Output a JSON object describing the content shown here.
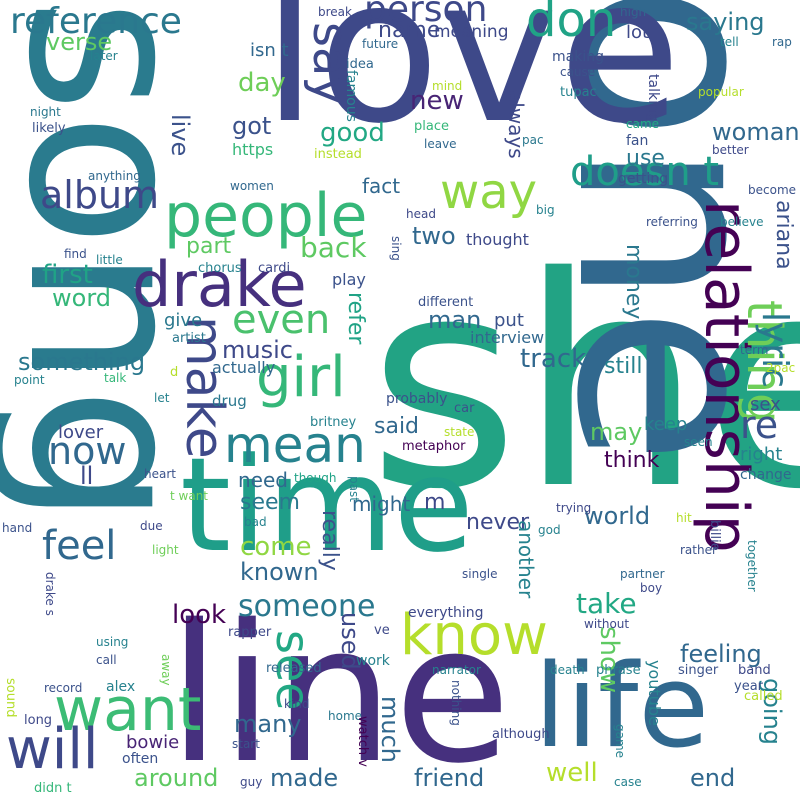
{
  "words": [
    {
      "text": "she",
      "color": "#22a384"
    },
    {
      "text": "song",
      "color": "#2a7b8e"
    },
    {
      "text": "one",
      "color": "#31688e"
    },
    {
      "text": "love",
      "color": "#3e4989"
    },
    {
      "text": "line",
      "color": "#46307e"
    },
    {
      "text": "time",
      "color": "#1f9e89"
    },
    {
      "text": "life",
      "color": "#31688e"
    },
    {
      "text": "relationship",
      "color": "#440154"
    },
    {
      "text": "people",
      "color": "#35b779"
    },
    {
      "text": "drake",
      "color": "#46307e"
    },
    {
      "text": "know",
      "color": "#b5de2b"
    },
    {
      "text": "want",
      "color": "#3cbc75"
    },
    {
      "text": "make",
      "color": "#3e4989"
    },
    {
      "text": "mean",
      "color": "#26828e"
    },
    {
      "text": "girl",
      "color": "#35b779"
    },
    {
      "text": "thing",
      "color": "#6ece58"
    },
    {
      "text": "way",
      "color": "#90d743"
    },
    {
      "text": "say",
      "color": "#3e4989"
    },
    {
      "text": "don",
      "color": "#20a386"
    },
    {
      "text": "will",
      "color": "#3e4989"
    },
    {
      "text": "reference",
      "color": "#2a788e"
    },
    {
      "text": "person",
      "color": "#3e4989"
    },
    {
      "text": "doesn t",
      "color": "#1f9e89"
    },
    {
      "text": "album",
      "color": "#3e4989"
    },
    {
      "text": "even",
      "color": "#4ac16d"
    },
    {
      "text": "feel",
      "color": "#31688e"
    },
    {
      "text": "someone",
      "color": "#2a788e"
    },
    {
      "text": "see",
      "color": "#22a884"
    },
    {
      "text": "lyric",
      "color": "#2a788e"
    },
    {
      "text": "now",
      "color": "#31688e"
    },
    {
      "text": "re",
      "color": "#3b528b"
    },
    {
      "text": "verse",
      "color": "#5ec962"
    },
    {
      "text": "saying",
      "color": "#2a788e"
    },
    {
      "text": "name",
      "color": "#3e4989"
    },
    {
      "text": "meaning",
      "color": "#3e4989"
    },
    {
      "text": "isn t",
      "color": "#31688e"
    },
    {
      "text": "day",
      "color": "#6ece58"
    },
    {
      "text": "live",
      "color": "#3b528b"
    },
    {
      "text": "new",
      "color": "#482475"
    },
    {
      "text": "got",
      "color": "#3b528b"
    },
    {
      "text": "good",
      "color": "#22a884"
    },
    {
      "text": "https",
      "color": "#35b779"
    },
    {
      "text": "woman",
      "color": "#31688e"
    },
    {
      "text": "use",
      "color": "#2a788e"
    },
    {
      "text": "always",
      "color": "#3e4989"
    },
    {
      "text": "fact",
      "color": "#31688e"
    },
    {
      "text": "back",
      "color": "#5ec962"
    },
    {
      "text": "part",
      "color": "#5ec962"
    },
    {
      "text": "two",
      "color": "#31688e"
    },
    {
      "text": "first",
      "color": "#20a386"
    },
    {
      "text": "word",
      "color": "#35b779"
    },
    {
      "text": "money",
      "color": "#2a788e"
    },
    {
      "text": "ariana",
      "color": "#3b528b"
    },
    {
      "text": "thought",
      "color": "#3e4989"
    },
    {
      "text": "music",
      "color": "#3e4989"
    },
    {
      "text": "something",
      "color": "#2a788e"
    },
    {
      "text": "track",
      "color": "#31688e"
    },
    {
      "text": "still",
      "color": "#26828e"
    },
    {
      "text": "man",
      "color": "#31688e"
    },
    {
      "text": "put",
      "color": "#3b528b"
    },
    {
      "text": "give",
      "color": "#2a788e"
    },
    {
      "text": "refer",
      "color": "#20a386"
    },
    {
      "text": "interview",
      "color": "#31688e"
    },
    {
      "text": "actually",
      "color": "#31688e"
    },
    {
      "text": "said",
      "color": "#31688e"
    },
    {
      "text": "lover",
      "color": "#3e4989"
    },
    {
      "text": "may",
      "color": "#5ec962"
    },
    {
      "text": "keep",
      "color": "#26828e"
    },
    {
      "text": "think",
      "color": "#440154"
    },
    {
      "text": "ll",
      "color": "#3e4989"
    },
    {
      "text": "need",
      "color": "#31688e"
    },
    {
      "text": "seem",
      "color": "#2a788e"
    },
    {
      "text": "might",
      "color": "#31688e"
    },
    {
      "text": "m",
      "color": "#3e4989"
    },
    {
      "text": "never",
      "color": "#3e4989"
    },
    {
      "text": "really",
      "color": "#3b528b"
    },
    {
      "text": "world",
      "color": "#31688e"
    },
    {
      "text": "come",
      "color": "#90d743"
    },
    {
      "text": "known",
      "color": "#31688e"
    },
    {
      "text": "another",
      "color": "#26828e"
    },
    {
      "text": "take",
      "color": "#22a884"
    },
    {
      "text": "show",
      "color": "#5ec962"
    },
    {
      "text": "feeling",
      "color": "#31688e"
    },
    {
      "text": "look",
      "color": "#440154"
    },
    {
      "text": "used",
      "color": "#3e4989"
    },
    {
      "text": "many",
      "color": "#31688e"
    },
    {
      "text": "much",
      "color": "#31688e"
    },
    {
      "text": "bowie",
      "color": "#482475"
    },
    {
      "text": "around",
      "color": "#5ec962"
    },
    {
      "text": "made",
      "color": "#31688e"
    },
    {
      "text": "friend",
      "color": "#31688e"
    },
    {
      "text": "well",
      "color": "#b5de2b"
    },
    {
      "text": "end",
      "color": "#31688e"
    },
    {
      "text": "going",
      "color": "#26828e"
    },
    {
      "text": "youtube",
      "color": "#26828e"
    },
    {
      "text": "sex",
      "color": "#3b528b"
    },
    {
      "text": "right",
      "color": "#26828e"
    },
    {
      "text": "change",
      "color": "#31688e"
    },
    {
      "text": "break",
      "color": "#3e4989"
    },
    {
      "text": "future",
      "color": "#31688e"
    },
    {
      "text": "idea",
      "color": "#31688e"
    },
    {
      "text": "high",
      "color": "#31688e"
    },
    {
      "text": "lot",
      "color": "#3e4989"
    },
    {
      "text": "making",
      "color": "#3b528b"
    },
    {
      "text": "cause",
      "color": "#3b528b"
    },
    {
      "text": "tell",
      "color": "#26828e"
    },
    {
      "text": "rap",
      "color": "#31688e"
    },
    {
      "text": "later",
      "color": "#26828e"
    },
    {
      "text": "famous",
      "color": "#26828e"
    },
    {
      "text": "tupac",
      "color": "#26828e"
    },
    {
      "text": "mind",
      "color": "#b5de2b"
    },
    {
      "text": "talking",
      "color": "#3e4989"
    },
    {
      "text": "popular",
      "color": "#b5de2b"
    },
    {
      "text": "night",
      "color": "#2a788e"
    },
    {
      "text": "likely",
      "color": "#3b528b"
    },
    {
      "text": "place",
      "color": "#35b779"
    },
    {
      "text": "came",
      "color": "#22a884"
    },
    {
      "text": "fan",
      "color": "#3b528b"
    },
    {
      "text": "better",
      "color": "#3e4989"
    },
    {
      "text": "leave",
      "color": "#31688e"
    },
    {
      "text": "instead",
      "color": "#b5de2b"
    },
    {
      "text": "pac",
      "color": "#2a788e"
    },
    {
      "text": "anything",
      "color": "#31688e"
    },
    {
      "text": "women",
      "color": "#31688e"
    },
    {
      "text": "getting",
      "color": "#3b528b"
    },
    {
      "text": "become",
      "color": "#3b528b"
    },
    {
      "text": "big",
      "color": "#26828e"
    },
    {
      "text": "head",
      "color": "#3e4989"
    },
    {
      "text": "referring",
      "color": "#3b528b"
    },
    {
      "text": "believe",
      "color": "#26828e"
    },
    {
      "text": "find",
      "color": "#3b528b"
    },
    {
      "text": "little",
      "color": "#26828e"
    },
    {
      "text": "sing",
      "color": "#3b528b"
    },
    {
      "text": "chorus",
      "color": "#26828e"
    },
    {
      "text": "cardi",
      "color": "#3e4989"
    },
    {
      "text": "play",
      "color": "#3b528b"
    },
    {
      "text": "different",
      "color": "#3b528b"
    },
    {
      "text": "artist",
      "color": "#2a788e"
    },
    {
      "text": "term",
      "color": "#31688e"
    },
    {
      "text": "2pac",
      "color": "#b5de2b"
    },
    {
      "text": "point",
      "color": "#26828e"
    },
    {
      "text": "talk",
      "color": "#35b779"
    },
    {
      "text": "d",
      "color": "#b5de2b"
    },
    {
      "text": "let",
      "color": "#26828e"
    },
    {
      "text": "drug",
      "color": "#2a788e"
    },
    {
      "text": "probably",
      "color": "#3b528b"
    },
    {
      "text": "car",
      "color": "#3b528b"
    },
    {
      "text": "britney",
      "color": "#26828e"
    },
    {
      "text": "metaphor",
      "color": "#440154"
    },
    {
      "text": "state",
      "color": "#b5de2b"
    },
    {
      "text": "seen",
      "color": "#26828e"
    },
    {
      "text": "heart",
      "color": "#3b528b"
    },
    {
      "text": "t want",
      "color": "#6ece58"
    },
    {
      "text": "though",
      "color": "#20a386"
    },
    {
      "text": "past",
      "color": "#26828e"
    },
    {
      "text": "hand",
      "color": "#3b528b"
    },
    {
      "text": "bad",
      "color": "#26828e"
    },
    {
      "text": "due",
      "color": "#3e4989"
    },
    {
      "text": "trying",
      "color": "#3e4989"
    },
    {
      "text": "god",
      "color": "#26828e"
    },
    {
      "text": "hit",
      "color": "#b5de2b"
    },
    {
      "text": "billie",
      "color": "#3e4989"
    },
    {
      "text": "light",
      "color": "#6ece58"
    },
    {
      "text": "rather",
      "color": "#3b528b"
    },
    {
      "text": "together",
      "color": "#26828e"
    },
    {
      "text": "drake s",
      "color": "#3e4989"
    },
    {
      "text": "everything",
      "color": "#3e4989"
    },
    {
      "text": "single",
      "color": "#3b528b"
    },
    {
      "text": "boy",
      "color": "#3e4989"
    },
    {
      "text": "partner",
      "color": "#31688e"
    },
    {
      "text": "without",
      "color": "#3e4989"
    },
    {
      "text": "using",
      "color": "#26828e"
    },
    {
      "text": "rapper",
      "color": "#3e4989"
    },
    {
      "text": "ve",
      "color": "#3e4989"
    },
    {
      "text": "call",
      "color": "#3b528b"
    },
    {
      "text": "away",
      "color": "#6ece58"
    },
    {
      "text": "released",
      "color": "#31688e"
    },
    {
      "text": "work",
      "color": "#26828e"
    },
    {
      "text": "death",
      "color": "#26828e"
    },
    {
      "text": "phrase",
      "color": "#26828e"
    },
    {
      "text": "singer",
      "color": "#3b528b"
    },
    {
      "text": "band",
      "color": "#3e4989"
    },
    {
      "text": "record",
      "color": "#3b528b"
    },
    {
      "text": "alex",
      "color": "#26828e"
    },
    {
      "text": "narrator",
      "color": "#26828e"
    },
    {
      "text": "sound",
      "color": "#b5de2b"
    },
    {
      "text": "kind",
      "color": "#3e4989"
    },
    {
      "text": "year",
      "color": "#3b528b"
    },
    {
      "text": "called",
      "color": "#b5de2b"
    },
    {
      "text": "long",
      "color": "#3e4989"
    },
    {
      "text": "home",
      "color": "#2a788e"
    },
    {
      "text": "watch v",
      "color": "#440154"
    },
    {
      "text": "nothing",
      "color": "#3b528b"
    },
    {
      "text": "although",
      "color": "#3e4989"
    },
    {
      "text": "game",
      "color": "#26828e"
    },
    {
      "text": "start",
      "color": "#3b528b"
    },
    {
      "text": "often",
      "color": "#3b528b"
    },
    {
      "text": "guy",
      "color": "#3e4989"
    },
    {
      "text": "case",
      "color": "#26828e"
    },
    {
      "text": "didn t",
      "color": "#35b779"
    }
  ]
}
